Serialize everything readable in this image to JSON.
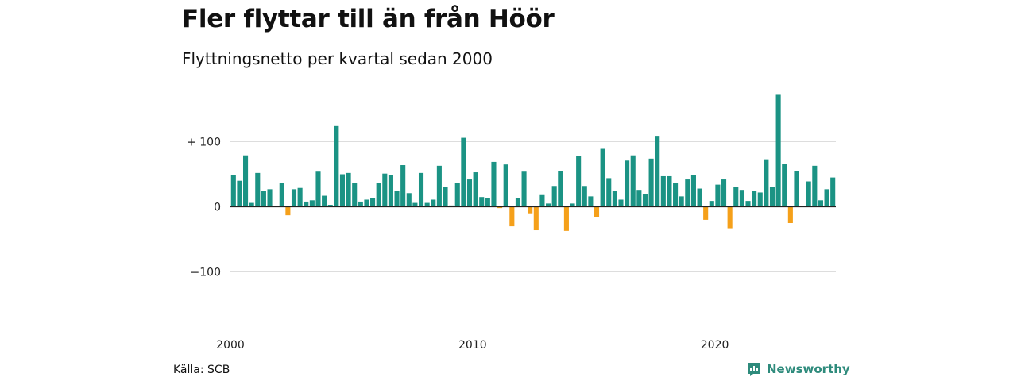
{
  "chart_data": {
    "type": "bar",
    "title": "Fler flyttar till än från Höör",
    "subtitle": "Flyttningsnetto per kvartal sedan 2000",
    "ylim": [
      -100,
      170
    ],
    "y_ticks": [
      {
        "value": 100,
        "label": "+ 100"
      },
      {
        "value": 0,
        "label": "0"
      },
      {
        "value": -100,
        "label": "−100"
      }
    ],
    "x_ticks": [
      {
        "year": 2000,
        "label": "2000"
      },
      {
        "year": 2010,
        "label": "2010"
      },
      {
        "year": 2020,
        "label": "2020"
      }
    ],
    "start_year": 2000,
    "frequency": "quarterly",
    "grid": true,
    "positive_color": "#1b9384",
    "negative_color": "#f5a01a",
    "values": [
      49,
      40,
      79,
      6,
      52,
      24,
      27,
      0,
      36,
      -13,
      27,
      29,
      8,
      10,
      54,
      17,
      3,
      124,
      50,
      52,
      36,
      8,
      11,
      14,
      36,
      51,
      49,
      25,
      64,
      21,
      6,
      52,
      6,
      11,
      63,
      30,
      2,
      37,
      106,
      42,
      53,
      15,
      13,
      69,
      -2,
      65,
      -30,
      13,
      54,
      -10,
      -36,
      18,
      5,
      32,
      55,
      -37,
      5,
      78,
      32,
      16,
      -16,
      89,
      44,
      24,
      11,
      71,
      79,
      26,
      19,
      74,
      109,
      47,
      47,
      37,
      16,
      42,
      49,
      28,
      -20,
      9,
      34,
      42,
      -33,
      31,
      26,
      9,
      25,
      22,
      73,
      31,
      172,
      66,
      -25,
      55,
      0,
      39,
      63,
      10,
      27,
      45
    ]
  },
  "source": {
    "label": "Källa: SCB"
  },
  "brand": {
    "name": "Newsworthy"
  },
  "colors": {
    "grid": "#dddddd",
    "zero_line": "#222222",
    "brand": "#2e8b7c"
  }
}
